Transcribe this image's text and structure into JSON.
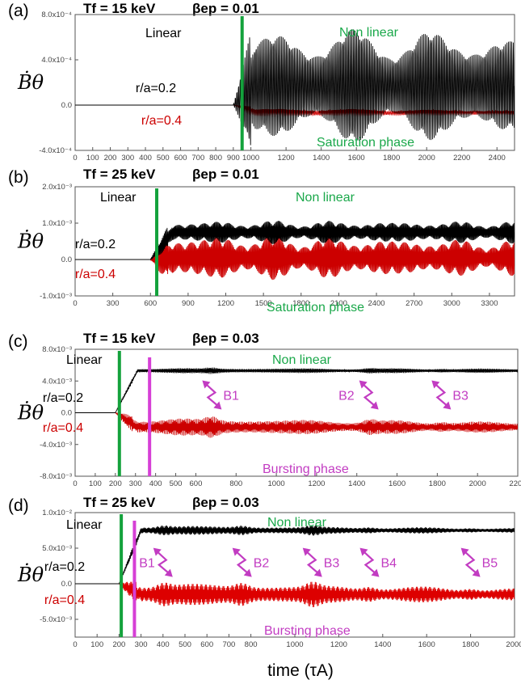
{
  "figure": {
    "ylabel": "Ḃθ",
    "xlabel": "time (τA)"
  },
  "chart_data": [
    {
      "panel": "(a)",
      "type": "line",
      "header": [
        "Tf = 15 keV",
        "βep = 0.01"
      ],
      "xlim": [
        0,
        2500
      ],
      "xticks": [
        0,
        100,
        200,
        300,
        400,
        500,
        600,
        700,
        800,
        900,
        1000,
        1200,
        1400,
        1600,
        1800,
        2000,
        2200,
        2400
      ],
      "ylim": [
        -0.0004,
        0.0008
      ],
      "yticks": [
        -0.0004,
        0,
        0.0004,
        0.0008
      ],
      "ytick_labels": [
        "-4.0x10⁻⁴",
        "0.0",
        "4.0x10⁻⁴",
        "8.0x10⁻⁴"
      ],
      "linear_line_x": 950,
      "annotations": {
        "linear": "Linear",
        "nonlinear": "Non linear",
        "phase": "Saturation phase"
      },
      "series": [
        {
          "label": "r/a=0.2",
          "color": "#000000",
          "onset": 900,
          "center": 0.00017,
          "amplitude": 0.00046,
          "final_amplitude": 0.00044
        },
        {
          "label": "r/a=0.4",
          "color": "#cc0000",
          "onset": 900,
          "center": -7e-05,
          "amplitude": 4e-05,
          "final_amplitude": 2e-05
        }
      ],
      "bursts": []
    },
    {
      "panel": "(b)",
      "type": "line",
      "header": [
        "Tf = 25 keV",
        "βep = 0.01"
      ],
      "xlim": [
        0,
        3500
      ],
      "xticks": [
        0,
        300,
        600,
        900,
        1200,
        1500,
        1800,
        2100,
        2400,
        2700,
        3000,
        3300
      ],
      "ylim": [
        -0.001,
        0.002
      ],
      "yticks": [
        -0.001,
        0,
        0.001,
        0.002
      ],
      "ytick_labels": [
        "-1.0x10⁻³",
        "0.0",
        "1.0x10⁻³",
        "2.0x10⁻³"
      ],
      "linear_line_x": 650,
      "annotations": {
        "linear": "Linear",
        "nonlinear": "Non linear",
        "phase": "Saturation phase"
      },
      "series": [
        {
          "label": "r/a=0.2",
          "color": "#000000",
          "onset": 600,
          "center": 0.00075,
          "amplitude": 0.0003,
          "final_amplitude": 0.00028
        },
        {
          "label": "r/a=0.4",
          "color": "#cc0000",
          "onset": 600,
          "center": 5e-05,
          "amplitude": 0.0006,
          "final_amplitude": 0.00045
        }
      ],
      "bursts": []
    },
    {
      "panel": "(c)",
      "type": "line",
      "header": [
        "Tf = 15 keV",
        "βep = 0.03"
      ],
      "xlim": [
        0,
        2200
      ],
      "xticks": [
        0,
        100,
        200,
        300,
        400,
        500,
        600,
        800,
        1000,
        1200,
        1400,
        1600,
        1800,
        2000,
        2200
      ],
      "ylim": [
        -0.008,
        0.008
      ],
      "yticks": [
        -0.008,
        -0.004,
        0,
        0.004,
        0.008
      ],
      "ytick_labels": [
        "-8.0x10⁻³",
        "-4.0x10⁻³",
        "0.0",
        "4.0x10⁻³",
        "8.0x10⁻³"
      ],
      "linear_line_x": 220,
      "burst_line_x": 370,
      "annotations": {
        "linear": "Linear",
        "nonlinear": "Non linear",
        "phase": "Bursting phase"
      },
      "series": [
        {
          "label": "r/a=0.2",
          "color": "#000000",
          "onset": 200,
          "center": 0.0053,
          "amplitude": 0.00035,
          "final_amplitude": 0.00025
        },
        {
          "label": "r/a=0.4",
          "color": "#cc0000",
          "onset": 200,
          "center": -0.0018,
          "amplitude": 0.0012,
          "final_amplitude": 0.0006
        }
      ],
      "bursts": [
        {
          "label": "B1",
          "x": 680
        },
        {
          "label": "B2",
          "x": 1460
        },
        {
          "label": "B3",
          "x": 1820
        }
      ]
    },
    {
      "panel": "(d)",
      "type": "line",
      "header": [
        "Tf = 25 keV",
        "βep = 0.03"
      ],
      "xlim": [
        0,
        2000
      ],
      "xticks": [
        0,
        100,
        200,
        300,
        400,
        500,
        600,
        700,
        800,
        1000,
        1200,
        1400,
        1600,
        1800,
        2000
      ],
      "ylim": [
        -0.0075,
        0.01
      ],
      "yticks": [
        -0.005,
        0,
        0.005,
        0.01
      ],
      "ytick_labels": [
        "-5.0x10⁻³",
        "0.0",
        "5.0x10⁻³",
        "1.0x10⁻²"
      ],
      "linear_line_x": 210,
      "burst_line_x": 270,
      "annotations": {
        "linear": "Linear",
        "nonlinear": "Non linear",
        "phase": "Bursting phase"
      },
      "series": [
        {
          "label": "r/a=0.2",
          "color": "#000000",
          "onset": 200,
          "center": 0.0075,
          "amplitude": 0.0007,
          "final_amplitude": 0.0003
        },
        {
          "label": "r/a=0.4",
          "color": "#dd0000",
          "onset": 200,
          "center": -0.0015,
          "amplitude": 0.0017,
          "final_amplitude": 0.0008
        }
      ],
      "bursts": [
        {
          "label": "B1",
          "x": 400
        },
        {
          "label": "B2",
          "x": 760
        },
        {
          "label": "B3",
          "x": 1080
        },
        {
          "label": "B4",
          "x": 1340
        },
        {
          "label": "B5",
          "x": 1800
        }
      ]
    }
  ]
}
